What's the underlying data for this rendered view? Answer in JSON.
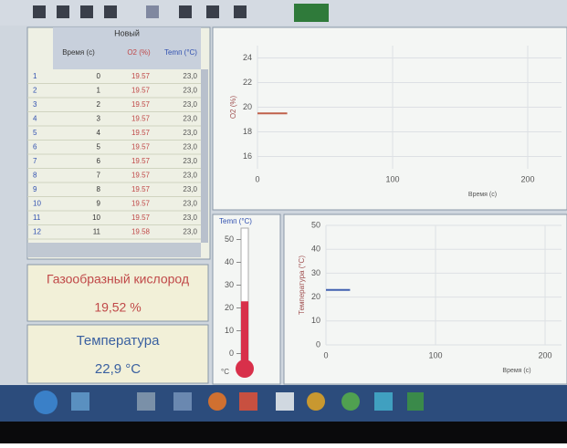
{
  "table": {
    "title": "Новый",
    "columns": [
      "Время (с)",
      "O2 (%)",
      "Temп (°C)"
    ],
    "rows": [
      [
        "1",
        "0",
        "19.57",
        "23,0"
      ],
      [
        "2",
        "1",
        "19.57",
        "23,0"
      ],
      [
        "3",
        "2",
        "19.57",
        "23,0"
      ],
      [
        "4",
        "3",
        "19.57",
        "23,0"
      ],
      [
        "5",
        "4",
        "19.57",
        "23,0"
      ],
      [
        "6",
        "5",
        "19.57",
        "23,0"
      ],
      [
        "7",
        "6",
        "19.57",
        "23,0"
      ],
      [
        "8",
        "7",
        "19.57",
        "23,0"
      ],
      [
        "9",
        "8",
        "19.57",
        "23,0"
      ],
      [
        "10",
        "9",
        "19.57",
        "23,0"
      ],
      [
        "11",
        "10",
        "19.57",
        "23,0"
      ],
      [
        "12",
        "11",
        "19.58",
        "23,0"
      ]
    ]
  },
  "panels": [
    {
      "title": "Газообразный кислород",
      "value": "19,52 %"
    },
    {
      "title": "Температура",
      "value": "22,9 °C"
    }
  ],
  "o2_chart": {
    "type": "line",
    "y_label": "O2 (%)",
    "x_label": "Время (с)",
    "xlim": [
      0,
      225
    ],
    "xticks": [
      0,
      100,
      200
    ],
    "ylim": [
      15,
      25
    ],
    "yticks": [
      24,
      22,
      20,
      18,
      16
    ],
    "x": [
      0,
      22
    ],
    "values": [
      19.5,
      19.5
    ],
    "color": "#c0604a"
  },
  "thermometer": {
    "label": "Temп (°C)",
    "unit": "°C",
    "ylim": [
      -5,
      55
    ],
    "yticks": [
      50,
      40,
      30,
      20,
      10,
      0
    ],
    "value": 22.9,
    "color": "#d8304a"
  },
  "temp_chart": {
    "type": "line",
    "y_label": "Температура (°C)",
    "x_label": "Время (с)",
    "xlim": [
      0,
      215
    ],
    "xticks": [
      0,
      100,
      200
    ],
    "ylim": [
      0,
      50
    ],
    "yticks": [
      50,
      40,
      30,
      20,
      10,
      0
    ],
    "x": [
      0,
      22
    ],
    "values": [
      23,
      23
    ],
    "color": "#4060b0"
  }
}
